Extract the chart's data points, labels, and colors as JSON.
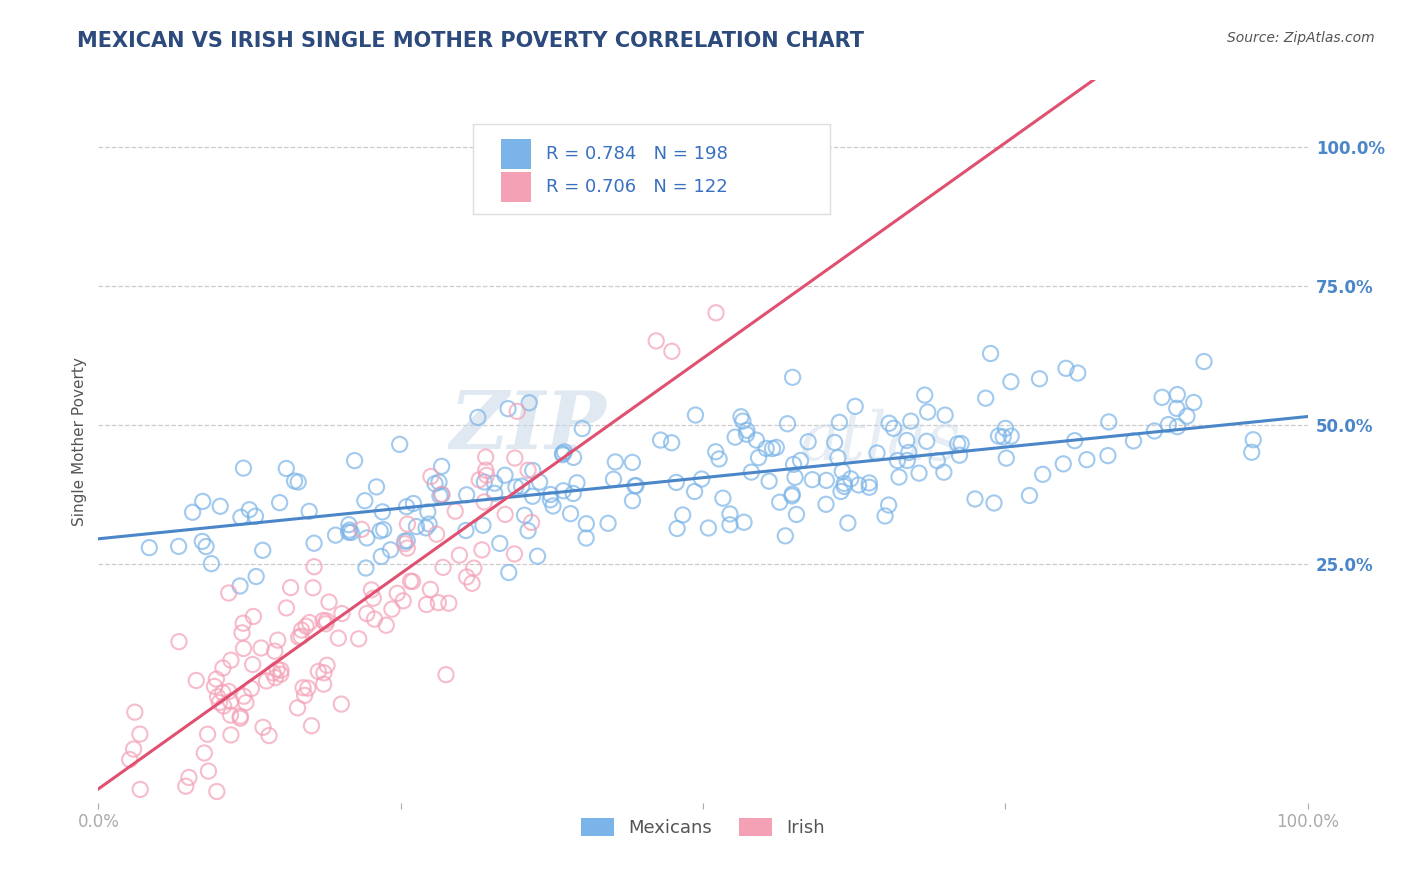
{
  "title": "MEXICAN VS IRISH SINGLE MOTHER POVERTY CORRELATION CHART",
  "source_text": "Source: ZipAtlas.com",
  "ylabel": "Single Mother Poverty",
  "watermark": "ZIPatlas",
  "legend_entries": [
    {
      "label": "Mexicans",
      "R": 0.784,
      "N": 198,
      "color": "#7ab4e8",
      "line_color": "#4a86c8"
    },
    {
      "label": "Irish",
      "R": 0.706,
      "N": 122,
      "color": "#f4a0b5",
      "line_color": "#e05070"
    }
  ],
  "xlim": [
    0.0,
    1.0
  ],
  "ylim": [
    -0.18,
    1.12
  ],
  "right_ytick_labels": [
    "25.0%",
    "50.0%",
    "75.0%",
    "100.0%"
  ],
  "right_ytick_values": [
    0.25,
    0.5,
    0.75,
    1.0
  ],
  "xtick_labels": [
    "0.0%",
    "",
    "",
    "",
    "100.0%"
  ],
  "xtick_values": [
    0.0,
    0.25,
    0.5,
    0.75,
    1.0
  ],
  "grid_color": "#cccccc",
  "background_color": "#ffffff",
  "title_color": "#2c4a7c",
  "title_fontsize": 15,
  "axis_label_color": "#555555",
  "tick_label_color": "#aaaaaa",
  "right_tick_color": "#4a86c8",
  "figsize": [
    14.06,
    8.92
  ],
  "dpi": 100,
  "mexican_line_slope": 0.22,
  "mexican_line_intercept": 0.295,
  "irish_line_slope": 1.55,
  "irish_line_intercept": -0.155
}
